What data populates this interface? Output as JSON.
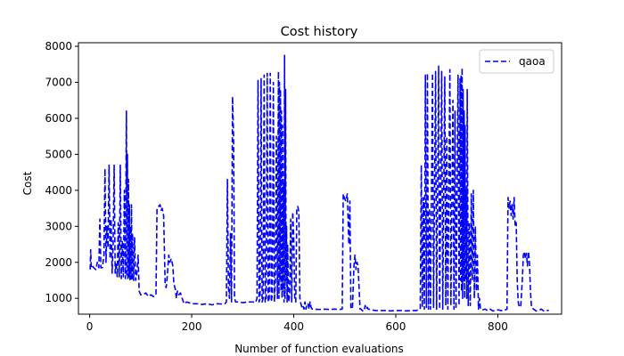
{
  "chart_data": {
    "type": "line",
    "title": "Cost history",
    "xlabel": "Number of function evaluations",
    "ylabel": "Cost",
    "xlim": [
      -22,
      925
    ],
    "ylim": [
      560,
      8100
    ],
    "xticks": [
      0,
      200,
      400,
      600,
      800
    ],
    "yticks": [
      1000,
      2000,
      3000,
      4000,
      5000,
      6000,
      7000,
      8000
    ],
    "grid": false,
    "legend_position": "top-right",
    "series": [
      {
        "name": "qaoa",
        "color": "#0000ff",
        "style": "dashed",
        "points": [
          [
            1,
            1800
          ],
          [
            2,
            2350
          ],
          [
            3,
            1850
          ],
          [
            5,
            1900
          ],
          [
            8,
            1850
          ],
          [
            12,
            1800
          ],
          [
            15,
            2000
          ],
          [
            18,
            1850
          ],
          [
            20,
            3200
          ],
          [
            22,
            1850
          ],
          [
            25,
            1850
          ],
          [
            28,
            2200
          ],
          [
            30,
            4600
          ],
          [
            32,
            2000
          ],
          [
            34,
            3000
          ],
          [
            36,
            2400
          ],
          [
            38,
            4700
          ],
          [
            40,
            2100
          ],
          [
            42,
            3200
          ],
          [
            44,
            1700
          ],
          [
            46,
            2500
          ],
          [
            48,
            4700
          ],
          [
            50,
            1700
          ],
          [
            52,
            2000
          ],
          [
            54,
            1600
          ],
          [
            56,
            3100
          ],
          [
            58,
            1600
          ],
          [
            60,
            4700
          ],
          [
            62,
            1550
          ],
          [
            64,
            2600
          ],
          [
            66,
            1600
          ],
          [
            68,
            4000
          ],
          [
            70,
            1550
          ],
          [
            72,
            6200
          ],
          [
            73,
            1600
          ],
          [
            74,
            5000
          ],
          [
            75,
            1500
          ],
          [
            76,
            4300
          ],
          [
            77,
            1600
          ],
          [
            78,
            3600
          ],
          [
            79,
            1500
          ],
          [
            80,
            3000
          ],
          [
            81,
            1550
          ],
          [
            82,
            3600
          ],
          [
            83,
            1500
          ],
          [
            84,
            2800
          ],
          [
            86,
            1500
          ],
          [
            88,
            2700
          ],
          [
            90,
            1500
          ],
          [
            92,
            1600
          ],
          [
            95,
            2200
          ],
          [
            97,
            1200
          ],
          [
            100,
            1100
          ],
          [
            105,
            1100
          ],
          [
            110,
            1150
          ],
          [
            115,
            1050
          ],
          [
            120,
            1100
          ],
          [
            125,
            1050
          ],
          [
            130,
            1100
          ],
          [
            132,
            3500
          ],
          [
            135,
            3550
          ],
          [
            138,
            3600
          ],
          [
            140,
            3450
          ],
          [
            142,
            3500
          ],
          [
            145,
            3300
          ],
          [
            148,
            1350
          ],
          [
            150,
            1300
          ],
          [
            152,
            1600
          ],
          [
            155,
            2200
          ],
          [
            157,
            2000
          ],
          [
            160,
            2100
          ],
          [
            163,
            1900
          ],
          [
            165,
            1400
          ],
          [
            168,
            1250
          ],
          [
            170,
            1000
          ],
          [
            172,
            1200
          ],
          [
            175,
            1100
          ],
          [
            178,
            1150
          ],
          [
            180,
            1050
          ],
          [
            185,
            850
          ],
          [
            190,
            900
          ],
          [
            200,
            850
          ],
          [
            210,
            850
          ],
          [
            220,
            830
          ],
          [
            230,
            850
          ],
          [
            240,
            820
          ],
          [
            250,
            850
          ],
          [
            260,
            840
          ],
          [
            265,
            850
          ],
          [
            268,
            900
          ],
          [
            270,
            4300
          ],
          [
            272,
            1300
          ],
          [
            274,
            1000
          ],
          [
            276,
            2800
          ],
          [
            278,
            900
          ],
          [
            280,
            6600
          ],
          [
            282,
            5500
          ],
          [
            284,
            1000
          ],
          [
            286,
            900
          ],
          [
            290,
            900
          ],
          [
            300,
            880
          ],
          [
            310,
            900
          ],
          [
            320,
            900
          ],
          [
            325,
            880
          ],
          [
            328,
            1000
          ],
          [
            330,
            7050
          ],
          [
            332,
            900
          ],
          [
            334,
            1000
          ],
          [
            336,
            7100
          ],
          [
            338,
            900
          ],
          [
            340,
            1000
          ],
          [
            342,
            7200
          ],
          [
            344,
            900
          ],
          [
            346,
            1000
          ],
          [
            348,
            7250
          ],
          [
            350,
            900
          ],
          [
            352,
            1000
          ],
          [
            354,
            7250
          ],
          [
            356,
            900
          ],
          [
            358,
            1100
          ],
          [
            360,
            7000
          ],
          [
            362,
            900
          ],
          [
            364,
            1500
          ],
          [
            366,
            5500
          ],
          [
            368,
            1000
          ],
          [
            370,
            7300
          ],
          [
            371,
            1000
          ],
          [
            372,
            7000
          ],
          [
            373,
            1500
          ],
          [
            374,
            6800
          ],
          [
            375,
            1200
          ],
          [
            376,
            6200
          ],
          [
            377,
            1000
          ],
          [
            378,
            5800
          ],
          [
            379,
            1200
          ],
          [
            380,
            4200
          ],
          [
            381,
            900
          ],
          [
            382,
            7750
          ],
          [
            383,
            1000
          ],
          [
            384,
            6800
          ],
          [
            385,
            1500
          ],
          [
            386,
            3000
          ],
          [
            387,
            900
          ],
          [
            388,
            2500
          ],
          [
            390,
            900
          ],
          [
            392,
            1100
          ],
          [
            394,
            3200
          ],
          [
            396,
            900
          ],
          [
            398,
            3400
          ],
          [
            400,
            2700
          ],
          [
            402,
            950
          ],
          [
            404,
            900
          ],
          [
            406,
            3500
          ],
          [
            408,
            3550
          ],
          [
            410,
            3400
          ],
          [
            412,
            1000
          ],
          [
            414,
            850
          ],
          [
            416,
            750
          ],
          [
            418,
            800
          ],
          [
            420,
            700
          ],
          [
            422,
            900
          ],
          [
            424,
            700
          ],
          [
            426,
            850
          ],
          [
            428,
            850
          ],
          [
            430,
            700
          ],
          [
            432,
            900
          ],
          [
            434,
            750
          ],
          [
            436,
            700
          ],
          [
            440,
            700
          ],
          [
            450,
            690
          ],
          [
            460,
            700
          ],
          [
            470,
            690
          ],
          [
            480,
            700
          ],
          [
            490,
            690
          ],
          [
            495,
            700
          ],
          [
            497,
            3900
          ],
          [
            499,
            3800
          ],
          [
            502,
            3700
          ],
          [
            505,
            3900
          ],
          [
            508,
            2500
          ],
          [
            510,
            3700
          ],
          [
            512,
            750
          ],
          [
            515,
            700
          ],
          [
            518,
            1900
          ],
          [
            520,
            2200
          ],
          [
            522,
            1800
          ],
          [
            524,
            2000
          ],
          [
            526,
            1900
          ],
          [
            528,
            1300
          ],
          [
            530,
            700
          ],
          [
            532,
            700
          ],
          [
            535,
            650
          ],
          [
            538,
            650
          ],
          [
            540,
            800
          ],
          [
            542,
            700
          ],
          [
            544,
            750
          ],
          [
            546,
            700
          ],
          [
            550,
            690
          ],
          [
            560,
            660
          ],
          [
            570,
            660
          ],
          [
            580,
            660
          ],
          [
            590,
            650
          ],
          [
            600,
            660
          ],
          [
            610,
            660
          ],
          [
            620,
            650
          ],
          [
            630,
            660
          ],
          [
            640,
            660
          ],
          [
            648,
            700
          ],
          [
            650,
            4700
          ],
          [
            652,
            750
          ],
          [
            654,
            3800
          ],
          [
            656,
            700
          ],
          [
            658,
            7200
          ],
          [
            660,
            750
          ],
          [
            662,
            7250
          ],
          [
            664,
            700
          ],
          [
            666,
            3500
          ],
          [
            668,
            700
          ],
          [
            672,
            7250
          ],
          [
            674,
            750
          ],
          [
            678,
            7300
          ],
          [
            680,
            700
          ],
          [
            684,
            7450
          ],
          [
            686,
            700
          ],
          [
            690,
            7300
          ],
          [
            692,
            700
          ],
          [
            696,
            7150
          ],
          [
            698,
            800
          ],
          [
            700,
            5500
          ],
          [
            702,
            700
          ],
          [
            706,
            7350
          ],
          [
            708,
            800
          ],
          [
            712,
            6500
          ],
          [
            714,
            700
          ],
          [
            716,
            6200
          ],
          [
            718,
            700
          ],
          [
            722,
            7200
          ],
          [
            724,
            800
          ],
          [
            726,
            7100
          ],
          [
            727,
            1500
          ],
          [
            728,
            7200
          ],
          [
            729,
            1200
          ],
          [
            730,
            7400
          ],
          [
            731,
            1000
          ],
          [
            732,
            6800
          ],
          [
            733,
            1500
          ],
          [
            734,
            6200
          ],
          [
            735,
            1000
          ],
          [
            736,
            5800
          ],
          [
            737,
            1500
          ],
          [
            738,
            4000
          ],
          [
            739,
            1000
          ],
          [
            740,
            6800
          ],
          [
            742,
            800
          ],
          [
            744,
            3100
          ],
          [
            746,
            800
          ],
          [
            748,
            3900
          ],
          [
            750,
            1500
          ],
          [
            752,
            4000
          ],
          [
            754,
            1000
          ],
          [
            756,
            3000
          ],
          [
            758,
            1200
          ],
          [
            760,
            2200
          ],
          [
            762,
            700
          ],
          [
            764,
            1000
          ],
          [
            766,
            700
          ],
          [
            770,
            680
          ],
          [
            775,
            700
          ],
          [
            780,
            660
          ],
          [
            785,
            700
          ],
          [
            790,
            650
          ],
          [
            800,
            680
          ],
          [
            810,
            650
          ],
          [
            818,
            700
          ],
          [
            820,
            3800
          ],
          [
            822,
            3500
          ],
          [
            824,
            3700
          ],
          [
            826,
            3300
          ],
          [
            828,
            3600
          ],
          [
            830,
            3200
          ],
          [
            832,
            3800
          ],
          [
            834,
            3000
          ],
          [
            836,
            3100
          ],
          [
            838,
            1500
          ],
          [
            840,
            900
          ],
          [
            842,
            750
          ],
          [
            845,
            800
          ],
          [
            848,
            1500
          ],
          [
            850,
            2200
          ],
          [
            852,
            2300
          ],
          [
            854,
            2100
          ],
          [
            856,
            2250
          ],
          [
            858,
            1900
          ],
          [
            860,
            2300
          ],
          [
            862,
            2000
          ],
          [
            864,
            1200
          ],
          [
            866,
            750
          ],
          [
            870,
            700
          ],
          [
            875,
            650
          ],
          [
            880,
            660
          ],
          [
            885,
            700
          ],
          [
            890,
            650
          ],
          [
            895,
            670
          ],
          [
            900,
            660
          ]
        ]
      }
    ]
  }
}
